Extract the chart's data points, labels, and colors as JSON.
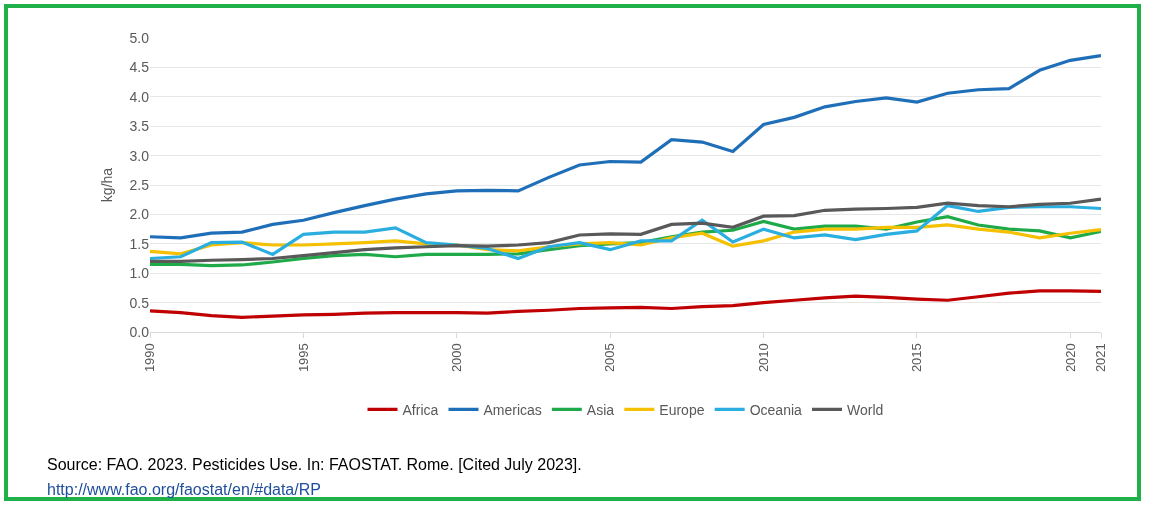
{
  "chart_data": {
    "type": "line",
    "ylabel": "kg/ha",
    "x": [
      1990,
      1991,
      1992,
      1993,
      1994,
      1995,
      1996,
      1997,
      1998,
      1999,
      2000,
      2001,
      2002,
      2003,
      2004,
      2005,
      2006,
      2007,
      2008,
      2009,
      2010,
      2011,
      2012,
      2013,
      2014,
      2015,
      2016,
      2017,
      2018,
      2019,
      2020,
      2021
    ],
    "series": [
      {
        "name": "Africa",
        "color": "#c00000",
        "values": [
          0.36,
          0.33,
          0.28,
          0.25,
          0.27,
          0.29,
          0.3,
          0.32,
          0.33,
          0.33,
          0.33,
          0.32,
          0.35,
          0.37,
          0.4,
          0.41,
          0.42,
          0.4,
          0.43,
          0.45,
          0.5,
          0.54,
          0.58,
          0.61,
          0.59,
          0.56,
          0.54,
          0.6,
          0.66,
          0.7,
          0.7,
          0.69
        ]
      },
      {
        "name": "Americas",
        "color": "#1f6fb8",
        "values": [
          1.62,
          1.6,
          1.68,
          1.7,
          1.83,
          1.9,
          2.03,
          2.15,
          2.26,
          2.35,
          2.4,
          2.41,
          2.4,
          2.63,
          2.84,
          2.9,
          2.89,
          3.27,
          3.23,
          3.07,
          3.53,
          3.65,
          3.83,
          3.92,
          3.98,
          3.91,
          4.06,
          4.12,
          4.14,
          4.45,
          4.62,
          4.7
        ]
      },
      {
        "name": "Asia",
        "color": "#1faa4a",
        "values": [
          1.15,
          1.15,
          1.13,
          1.14,
          1.19,
          1.25,
          1.3,
          1.32,
          1.28,
          1.32,
          1.32,
          1.32,
          1.33,
          1.4,
          1.47,
          1.5,
          1.52,
          1.62,
          1.7,
          1.73,
          1.88,
          1.75,
          1.8,
          1.8,
          1.75,
          1.87,
          1.96,
          1.82,
          1.75,
          1.72,
          1.6,
          1.71
        ]
      },
      {
        "name": "Europe",
        "color": "#f5c000",
        "values": [
          1.37,
          1.33,
          1.48,
          1.52,
          1.48,
          1.48,
          1.5,
          1.52,
          1.55,
          1.5,
          1.48,
          1.4,
          1.38,
          1.45,
          1.5,
          1.52,
          1.48,
          1.6,
          1.68,
          1.46,
          1.55,
          1.7,
          1.75,
          1.75,
          1.78,
          1.78,
          1.82,
          1.75,
          1.7,
          1.6,
          1.68,
          1.74
        ]
      },
      {
        "name": "Oceania",
        "color": "#2aaee0",
        "values": [
          1.25,
          1.28,
          1.52,
          1.53,
          1.32,
          1.66,
          1.7,
          1.7,
          1.77,
          1.52,
          1.48,
          1.42,
          1.25,
          1.45,
          1.52,
          1.4,
          1.55,
          1.55,
          1.9,
          1.53,
          1.75,
          1.6,
          1.65,
          1.57,
          1.66,
          1.72,
          2.15,
          2.05,
          2.12,
          2.13,
          2.13,
          2.1
        ]
      },
      {
        "name": "World",
        "color": "#595959",
        "values": [
          1.2,
          1.2,
          1.22,
          1.23,
          1.25,
          1.3,
          1.35,
          1.4,
          1.43,
          1.45,
          1.47,
          1.46,
          1.48,
          1.52,
          1.65,
          1.67,
          1.66,
          1.83,
          1.85,
          1.78,
          1.97,
          1.98,
          2.07,
          2.09,
          2.1,
          2.12,
          2.19,
          2.15,
          2.13,
          2.17,
          2.19,
          2.26
        ]
      }
    ],
    "xlim": [
      1990,
      2021
    ],
    "xticks": [
      1990,
      1995,
      2000,
      2005,
      2010,
      2015,
      2020,
      2021
    ],
    "ylim": [
      0,
      5
    ],
    "yticks": [
      {
        "value": 0,
        "label": "0.0"
      },
      {
        "value": 0.5,
        "label": "0.5"
      },
      {
        "value": 1,
        "label": "1.0"
      },
      {
        "value": 1.5,
        "label": "1.5"
      },
      {
        "value": 2,
        "label": "2.0"
      },
      {
        "value": 2.5,
        "label": "2.5"
      },
      {
        "value": 3,
        "label": "3.0"
      },
      {
        "value": 3.5,
        "label": "3.5"
      },
      {
        "value": 4,
        "label": "4.0"
      },
      {
        "value": 4.5,
        "label": "4.5"
      },
      {
        "value": 5,
        "label": "5.0"
      }
    ],
    "grid": "y",
    "legend": "bottom",
    "marker": "none",
    "line_style": "solid",
    "annotations": [
      "Source: FAO. 2023. Pesticides Use. In: FAOSTAT. Rome. [Cited July 2023].",
      "http://www.fao.org/faostat/en/#data/RP"
    ]
  }
}
